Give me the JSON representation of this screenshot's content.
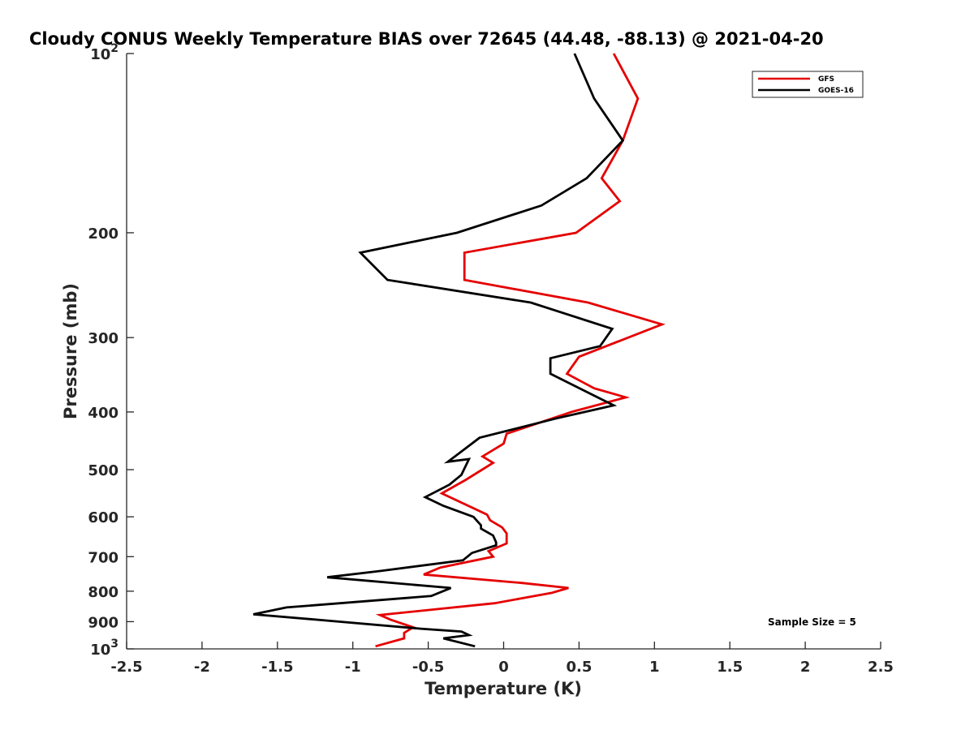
{
  "chart_data": {
    "type": "line",
    "title": "Cloudy CONUS Weekly Temperature BIAS over 72645 (44.48, -88.13) @ 2021-04-20",
    "xlabel": "Temperature (K)",
    "ylabel": "Pressure (mb)",
    "xlim": [
      -2.5,
      2.5
    ],
    "ylim": [
      100,
      1000
    ],
    "y_scale": "log",
    "y_reversed": true,
    "grid": false,
    "legend_position": "top-right",
    "x_ticks": [
      -2.5,
      -2,
      -1.5,
      -1,
      -0.5,
      0,
      0.5,
      1,
      1.5,
      2,
      2.5
    ],
    "x_tick_labels": [
      "-2.5",
      "-2",
      "-1.5",
      "-1",
      "-0.5",
      "0",
      "0.5",
      "1",
      "1.5",
      "2",
      "2.5"
    ],
    "y_ticks": [
      100,
      200,
      300,
      400,
      500,
      600,
      700,
      800,
      900,
      1000
    ],
    "y_tick_labels": [
      {
        "base": "10",
        "exp": "2"
      },
      {
        "base": "200",
        "exp": ""
      },
      {
        "base": "300",
        "exp": ""
      },
      {
        "base": "400",
        "exp": ""
      },
      {
        "base": "500",
        "exp": ""
      },
      {
        "base": "600",
        "exp": ""
      },
      {
        "base": "700",
        "exp": ""
      },
      {
        "base": "800",
        "exp": ""
      },
      {
        "base": "900",
        "exp": ""
      },
      {
        "base": "10",
        "exp": "3"
      }
    ],
    "annotation": "Sample Size = 5",
    "series": [
      {
        "name": "GFS",
        "color": "#e50000",
        "x": [
          0.73,
          0.89,
          0.79,
          0.65,
          0.77,
          0.48,
          -0.26,
          -0.26,
          0.56,
          1.05,
          0.5,
          0.42,
          0.6,
          0.81,
          0.45,
          0.02,
          0.0,
          -0.14,
          -0.07,
          -0.25,
          -0.41,
          -0.11,
          -0.09,
          -0.01,
          0.02,
          0.02,
          -0.1,
          -0.07,
          -0.42,
          -0.53,
          0.12,
          0.43,
          0.32,
          -0.06,
          -0.82,
          -0.75,
          -0.6,
          -0.66,
          -0.66,
          -0.85
        ],
        "y": [
          100,
          119,
          140,
          162,
          177,
          200,
          216,
          240,
          262,
          285,
          323,
          345,
          365,
          378,
          400,
          435,
          452,
          475,
          487,
          520,
          548,
          595,
          608,
          625,
          640,
          665,
          685,
          700,
          730,
          750,
          775,
          790,
          805,
          838,
          877,
          893,
          920,
          940,
          960,
          990
        ]
      },
      {
        "name": "GOES-16",
        "color": "#000000",
        "x": [
          0.47,
          0.6,
          0.79,
          0.55,
          0.25,
          -0.31,
          -0.95,
          -0.77,
          0.18,
          0.72,
          0.64,
          0.31,
          0.31,
          0.53,
          0.73,
          0.35,
          -0.16,
          -0.25,
          -0.37,
          -0.23,
          -0.28,
          -0.36,
          -0.52,
          -0.4,
          -0.2,
          -0.15,
          -0.15,
          -0.07,
          -0.05,
          -0.05,
          -0.21,
          -0.27,
          -0.82,
          -1.17,
          -0.35,
          -0.48,
          -1.44,
          -1.66,
          -1.2,
          -0.55,
          -0.28,
          -0.23,
          -0.4,
          -0.19
        ],
        "y": [
          100,
          119,
          140,
          162,
          180,
          200,
          216,
          240,
          262,
          290,
          310,
          325,
          345,
          368,
          390,
          410,
          442,
          460,
          485,
          480,
          510,
          530,
          556,
          575,
          600,
          620,
          628,
          645,
          662,
          670,
          690,
          710,
          740,
          758,
          790,
          815,
          852,
          875,
          895,
          925,
          935,
          948,
          960,
          990
        ]
      }
    ]
  }
}
